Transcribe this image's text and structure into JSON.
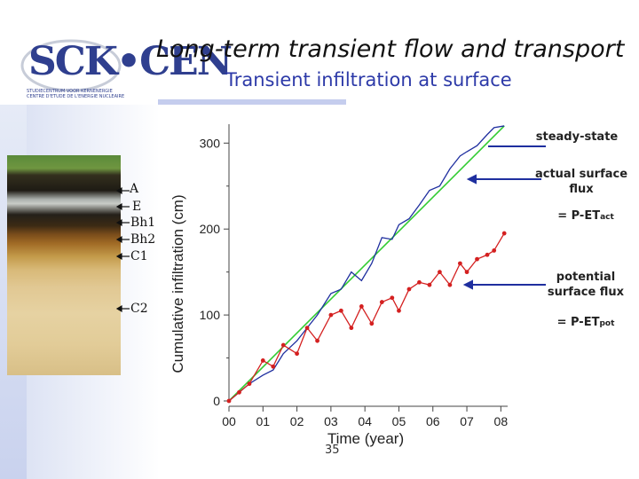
{
  "header": {
    "logo_text": "SCK•CEN",
    "logo_subtext": "STUDIECENTRUM VOOR KERNENERGIE\nCENTRE D'ETUDE DE L'ENERGIE NUCLEAIRE",
    "title": "Long-term transient flow and transport",
    "subtitle": "Transient infiltration at surface"
  },
  "soil_profile": {
    "horizons": [
      "A",
      "E",
      "Bh1",
      "Bh2",
      "C1",
      "C2"
    ]
  },
  "annotations": {
    "steady_state": "steady-state",
    "actual_flux_line1": "actual surface",
    "actual_flux_line2": "flux",
    "actual_eq": "= P-ET",
    "actual_eq_sub": "act",
    "potential_flux_line1": "potential",
    "potential_flux_line2": "surface flux",
    "potential_eq": "= P-ET",
    "potential_eq_sub": "pot"
  },
  "page_number": "35",
  "colors": {
    "steady": "#33cc33",
    "actual": "#1f2f9f",
    "potential": "#d42020",
    "title_blue": "#2d3aa8"
  },
  "chart_data": {
    "type": "line",
    "xlabel": "Time (year)",
    "ylabel": "Cumulative infiltration (cm)",
    "x_tick_labels": [
      "00",
      "01",
      "02",
      "03",
      "04",
      "05",
      "06",
      "07",
      "08"
    ],
    "x_ticks": [
      0,
      1,
      2,
      3,
      4,
      5,
      6,
      7,
      8
    ],
    "y_ticks": [
      0,
      100,
      200,
      300
    ],
    "y_tick_labels": [
      "0",
      "100",
      "200",
      "300"
    ],
    "xlim": [
      0,
      8.2
    ],
    "ylim": [
      0,
      322
    ],
    "series": [
      {
        "name": "steady-state",
        "x": [
          0,
          8.1
        ],
        "y": [
          0,
          320
        ]
      },
      {
        "name": "actual surface flux",
        "x": [
          0,
          0.3,
          0.6,
          1.0,
          1.3,
          1.6,
          2.0,
          2.3,
          2.6,
          3.0,
          3.3,
          3.6,
          3.9,
          4.2,
          4.5,
          4.8,
          5.0,
          5.3,
          5.6,
          5.9,
          6.2,
          6.5,
          6.8,
          7.0,
          7.3,
          7.6,
          7.8,
          8.1
        ],
        "y": [
          0,
          10,
          20,
          30,
          36,
          55,
          70,
          85,
          100,
          125,
          130,
          150,
          140,
          160,
          190,
          188,
          205,
          212,
          228,
          245,
          250,
          270,
          285,
          290,
          297,
          310,
          318,
          320
        ]
      },
      {
        "name": "potential surface flux",
        "x": [
          0,
          0.3,
          0.6,
          1.0,
          1.3,
          1.6,
          2.0,
          2.3,
          2.6,
          3.0,
          3.3,
          3.6,
          3.9,
          4.2,
          4.5,
          4.8,
          5.0,
          5.3,
          5.6,
          5.9,
          6.2,
          6.5,
          6.8,
          7.0,
          7.3,
          7.6,
          7.8,
          8.1
        ],
        "y": [
          0,
          10,
          20,
          47,
          40,
          65,
          55,
          85,
          70,
          100,
          105,
          85,
          110,
          90,
          115,
          120,
          105,
          130,
          138,
          135,
          150,
          135,
          160,
          150,
          165,
          170,
          175,
          195
        ]
      }
    ]
  }
}
